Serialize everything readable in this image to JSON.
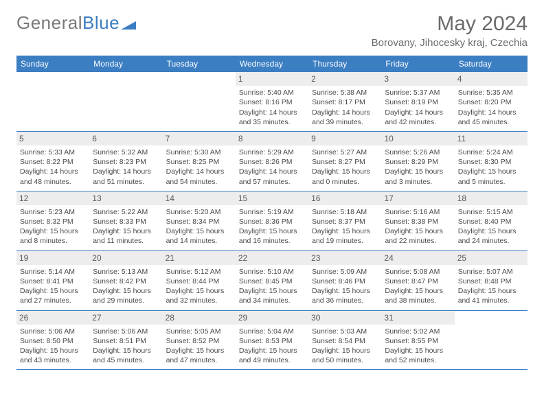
{
  "logo": {
    "text1": "General",
    "text2": "Blue"
  },
  "title": "May 2024",
  "location": "Borovany, Jihocesky kraj, Czechia",
  "colors": {
    "header_bg": "#3b7ec2",
    "header_fg": "#ffffff",
    "daynum_bg": "#ededed",
    "week_border": "#3b7ec2",
    "text": "#4a4a4a",
    "logo_gray": "#7a7a7a",
    "logo_blue": "#3b7ec2"
  },
  "weekdays": [
    "Sunday",
    "Monday",
    "Tuesday",
    "Wednesday",
    "Thursday",
    "Friday",
    "Saturday"
  ],
  "weeks": [
    [
      null,
      null,
      null,
      {
        "n": "1",
        "sr": "5:40 AM",
        "ss": "8:16 PM",
        "dl": "14 hours and 35 minutes."
      },
      {
        "n": "2",
        "sr": "5:38 AM",
        "ss": "8:17 PM",
        "dl": "14 hours and 39 minutes."
      },
      {
        "n": "3",
        "sr": "5:37 AM",
        "ss": "8:19 PM",
        "dl": "14 hours and 42 minutes."
      },
      {
        "n": "4",
        "sr": "5:35 AM",
        "ss": "8:20 PM",
        "dl": "14 hours and 45 minutes."
      }
    ],
    [
      {
        "n": "5",
        "sr": "5:33 AM",
        "ss": "8:22 PM",
        "dl": "14 hours and 48 minutes."
      },
      {
        "n": "6",
        "sr": "5:32 AM",
        "ss": "8:23 PM",
        "dl": "14 hours and 51 minutes."
      },
      {
        "n": "7",
        "sr": "5:30 AM",
        "ss": "8:25 PM",
        "dl": "14 hours and 54 minutes."
      },
      {
        "n": "8",
        "sr": "5:29 AM",
        "ss": "8:26 PM",
        "dl": "14 hours and 57 minutes."
      },
      {
        "n": "9",
        "sr": "5:27 AM",
        "ss": "8:27 PM",
        "dl": "15 hours and 0 minutes."
      },
      {
        "n": "10",
        "sr": "5:26 AM",
        "ss": "8:29 PM",
        "dl": "15 hours and 3 minutes."
      },
      {
        "n": "11",
        "sr": "5:24 AM",
        "ss": "8:30 PM",
        "dl": "15 hours and 5 minutes."
      }
    ],
    [
      {
        "n": "12",
        "sr": "5:23 AM",
        "ss": "8:32 PM",
        "dl": "15 hours and 8 minutes."
      },
      {
        "n": "13",
        "sr": "5:22 AM",
        "ss": "8:33 PM",
        "dl": "15 hours and 11 minutes."
      },
      {
        "n": "14",
        "sr": "5:20 AM",
        "ss": "8:34 PM",
        "dl": "15 hours and 14 minutes."
      },
      {
        "n": "15",
        "sr": "5:19 AM",
        "ss": "8:36 PM",
        "dl": "15 hours and 16 minutes."
      },
      {
        "n": "16",
        "sr": "5:18 AM",
        "ss": "8:37 PM",
        "dl": "15 hours and 19 minutes."
      },
      {
        "n": "17",
        "sr": "5:16 AM",
        "ss": "8:38 PM",
        "dl": "15 hours and 22 minutes."
      },
      {
        "n": "18",
        "sr": "5:15 AM",
        "ss": "8:40 PM",
        "dl": "15 hours and 24 minutes."
      }
    ],
    [
      {
        "n": "19",
        "sr": "5:14 AM",
        "ss": "8:41 PM",
        "dl": "15 hours and 27 minutes."
      },
      {
        "n": "20",
        "sr": "5:13 AM",
        "ss": "8:42 PM",
        "dl": "15 hours and 29 minutes."
      },
      {
        "n": "21",
        "sr": "5:12 AM",
        "ss": "8:44 PM",
        "dl": "15 hours and 32 minutes."
      },
      {
        "n": "22",
        "sr": "5:10 AM",
        "ss": "8:45 PM",
        "dl": "15 hours and 34 minutes."
      },
      {
        "n": "23",
        "sr": "5:09 AM",
        "ss": "8:46 PM",
        "dl": "15 hours and 36 minutes."
      },
      {
        "n": "24",
        "sr": "5:08 AM",
        "ss": "8:47 PM",
        "dl": "15 hours and 38 minutes."
      },
      {
        "n": "25",
        "sr": "5:07 AM",
        "ss": "8:48 PM",
        "dl": "15 hours and 41 minutes."
      }
    ],
    [
      {
        "n": "26",
        "sr": "5:06 AM",
        "ss": "8:50 PM",
        "dl": "15 hours and 43 minutes."
      },
      {
        "n": "27",
        "sr": "5:06 AM",
        "ss": "8:51 PM",
        "dl": "15 hours and 45 minutes."
      },
      {
        "n": "28",
        "sr": "5:05 AM",
        "ss": "8:52 PM",
        "dl": "15 hours and 47 minutes."
      },
      {
        "n": "29",
        "sr": "5:04 AM",
        "ss": "8:53 PM",
        "dl": "15 hours and 49 minutes."
      },
      {
        "n": "30",
        "sr": "5:03 AM",
        "ss": "8:54 PM",
        "dl": "15 hours and 50 minutes."
      },
      {
        "n": "31",
        "sr": "5:02 AM",
        "ss": "8:55 PM",
        "dl": "15 hours and 52 minutes."
      },
      null
    ]
  ]
}
